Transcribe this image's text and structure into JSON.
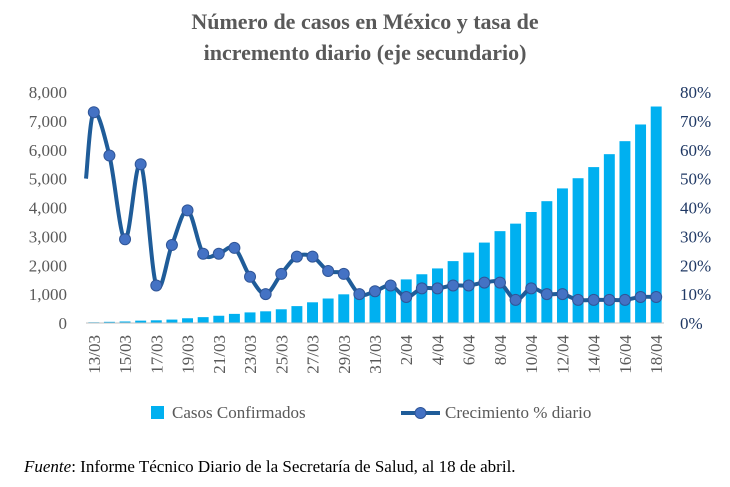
{
  "title_line1": "Número de casos en México y tasa de",
  "title_line2": "incremento diario (eje secundario)",
  "source_label": "Fuente",
  "source_text": ": Informe Técnico Diario de la Secretaría de Salud, al 18 de abril.",
  "colors": {
    "bars": "#00B0F0",
    "line": "#1F5C99",
    "marker": "#4472C4",
    "axis_text": "#595959",
    "right_axis_text": "#1F3864"
  },
  "chart_data": {
    "type": "bar+line",
    "title": "Número de casos en México y tasa de incremento diario (eje secundario)",
    "x_tick_labels": [
      "13/03",
      "15/03",
      "17/03",
      "19/03",
      "21/03",
      "23/03",
      "25/03",
      "27/03",
      "29/03",
      "31/03",
      "2/04",
      "4/04",
      "6/04",
      "8/04",
      "10/04",
      "12/04",
      "14/04",
      "16/04",
      "18/04"
    ],
    "categories": [
      "13/03",
      "14/03",
      "15/03",
      "16/03",
      "17/03",
      "18/03",
      "19/03",
      "20/03",
      "21/03",
      "22/03",
      "23/03",
      "24/03",
      "25/03",
      "26/03",
      "27/03",
      "28/03",
      "29/03",
      "30/03",
      "31/03",
      "1/04",
      "2/04",
      "3/04",
      "4/04",
      "5/04",
      "6/04",
      "7/04",
      "8/04",
      "9/04",
      "10/04",
      "11/04",
      "12/04",
      "13/04",
      "14/04",
      "15/04",
      "16/04",
      "17/04",
      "18/04"
    ],
    "y_left": {
      "ticks": [
        "0",
        "1,000",
        "2,000",
        "3,000",
        "4,000",
        "5,000",
        "6,000",
        "7,000",
        "8,000"
      ],
      "ylim": [
        0,
        8000
      ]
    },
    "y_right": {
      "ticks": [
        "0%",
        "10%",
        "20%",
        "30%",
        "40%",
        "50%",
        "60%",
        "70%",
        "80%"
      ],
      "ylim": [
        0,
        80
      ]
    },
    "series": [
      {
        "name": "Casos Confirmados",
        "type": "bar",
        "axis": "left",
        "values": [
          26,
          41,
          53,
          82,
          93,
          118,
          164,
          203,
          251,
          316,
          367,
          405,
          475,
          585,
          717,
          848,
          993,
          1094,
          1215,
          1378,
          1510,
          1688,
          1890,
          2143,
          2439,
          2785,
          3181,
          3441,
          3844,
          4219,
          4661,
          5014,
          5399,
          5847,
          6297,
          6875,
          7497
        ]
      },
      {
        "name": "Crecimiento % diario",
        "type": "line",
        "axis": "right",
        "values": [
          73,
          58,
          29,
          55,
          13,
          27,
          39,
          24,
          24,
          26,
          16,
          10,
          17,
          23,
          23,
          18,
          17,
          10,
          11,
          13,
          9,
          12,
          12,
          13,
          13,
          14,
          14,
          8,
          12,
          10,
          10,
          8,
          8,
          8,
          8,
          9,
          9
        ]
      }
    ],
    "legend_position": "bottom",
    "grid": false
  }
}
